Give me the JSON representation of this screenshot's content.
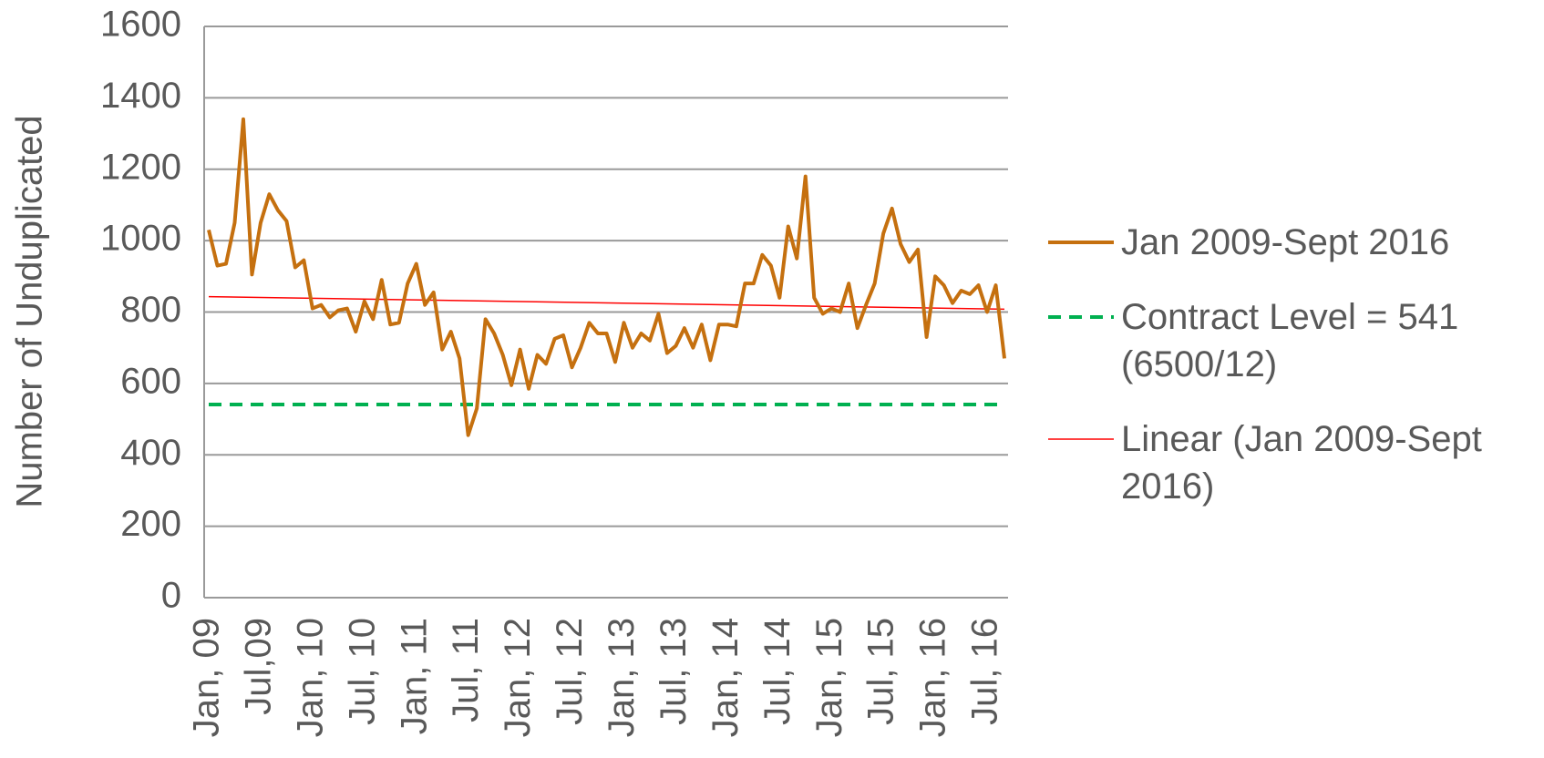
{
  "chart_data": {
    "type": "line",
    "y_label": "Number of Unduplicated",
    "categories": [
      "Jan, 09",
      null,
      null,
      null,
      null,
      null,
      "Jul,09",
      null,
      null,
      null,
      null,
      null,
      "Jan, 10",
      null,
      null,
      null,
      null,
      null,
      "Jul, 10",
      null,
      null,
      null,
      null,
      null,
      "Jan, 11",
      null,
      null,
      null,
      null,
      null,
      "Jul, 11",
      null,
      null,
      null,
      null,
      null,
      "Jan, 12",
      null,
      null,
      null,
      null,
      null,
      "Jul, 12",
      null,
      null,
      null,
      null,
      null,
      "Jan, 13",
      null,
      null,
      null,
      null,
      null,
      "Jul, 13",
      null,
      null,
      null,
      null,
      null,
      "Jan, 14",
      null,
      null,
      null,
      null,
      null,
      "Jul, 14",
      null,
      null,
      null,
      null,
      null,
      "Jan, 15",
      null,
      null,
      null,
      null,
      null,
      "Jul, 15",
      null,
      null,
      null,
      null,
      null,
      "Jan, 16",
      null,
      null,
      null,
      null,
      null,
      "Jul, 16",
      null,
      null
    ],
    "series": [
      {
        "name": "Jan 2009-Sept 2016",
        "color": "#c5700f",
        "values": [
          1030,
          930,
          935,
          1050,
          1340,
          905,
          1050,
          1130,
          1085,
          1055,
          925,
          945,
          810,
          820,
          785,
          805,
          810,
          745,
          830,
          780,
          890,
          765,
          770,
          880,
          935,
          820,
          855,
          695,
          745,
          670,
          455,
          530,
          780,
          740,
          680,
          595,
          695,
          585,
          680,
          655,
          725,
          735,
          645,
          700,
          770,
          740,
          740,
          660,
          770,
          700,
          740,
          720,
          795,
          685,
          705,
          755,
          700,
          765,
          665,
          765,
          765,
          760,
          880,
          880,
          960,
          930,
          840,
          1040,
          950,
          1180,
          840,
          795,
          810,
          800,
          880,
          755,
          820,
          880,
          1020,
          1090,
          990,
          940,
          975,
          730,
          900,
          875,
          825,
          860,
          850,
          875,
          800,
          875,
          670
        ]
      }
    ],
    "reference_line": {
      "name": "Contract Level = 541 (6500/12)",
      "color": "#00b050",
      "value": 541
    },
    "trendline": {
      "name": "Linear (Jan 2009-Sept 2016)",
      "color": "#ff0000",
      "values": [
        843,
        808
      ]
    },
    "ylim": [
      0,
      1600
    ],
    "yticks": [
      0,
      200,
      400,
      600,
      800,
      1000,
      1200,
      1400,
      1600
    ],
    "grid": true,
    "legend": "right"
  }
}
